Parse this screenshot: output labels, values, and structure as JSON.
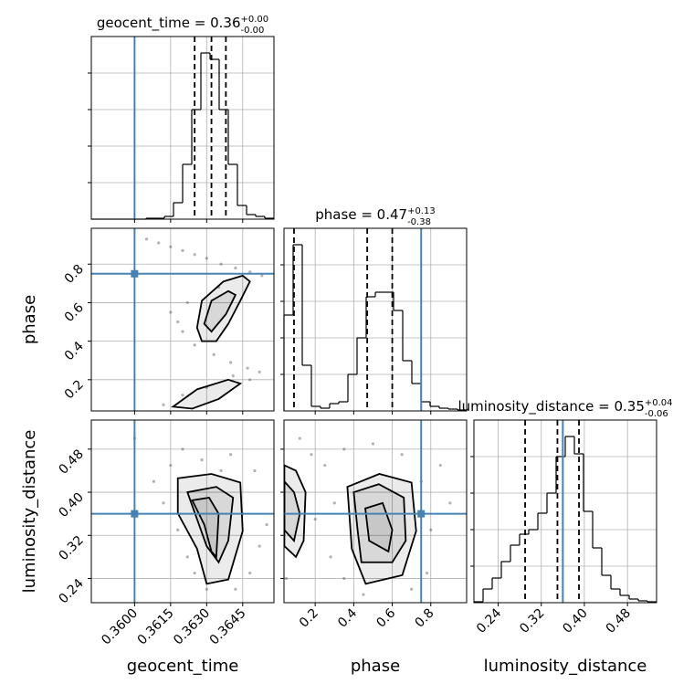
{
  "chart_data": {
    "type": "corner",
    "truth_color": "#4682b4",
    "line_color": "#000000",
    "point_color": "#555555",
    "grid": true,
    "parameters": [
      {
        "name": "geocent_time",
        "title": "geocent_time = 0.36",
        "title_upper": "+0.00",
        "title_lower": "-0.00",
        "lim": [
          0.3582,
          0.3658
        ],
        "ticks": [
          {
            "value": 0.36,
            "label": "0.3600"
          },
          {
            "value": 0.3615,
            "label": "0.3615"
          },
          {
            "value": 0.363,
            "label": "0.3630"
          },
          {
            "value": 0.3645,
            "label": "0.3645"
          }
        ],
        "truth": 0.36,
        "quantiles": [
          0.3625,
          0.3632,
          0.3638
        ],
        "bins": [
          0.3582,
          0.35858,
          0.35896,
          0.35934,
          0.35972,
          0.3601,
          0.36048,
          0.36086,
          0.36124,
          0.36162,
          0.362,
          0.36238,
          0.36276,
          0.36314,
          0.36352,
          0.3639,
          0.36428,
          0.36466,
          0.36504,
          0.36542,
          0.3658
        ],
        "counts": [
          0,
          0,
          0,
          0,
          0,
          0,
          1,
          1,
          3,
          18,
          60,
          120,
          182,
          175,
          120,
          60,
          15,
          5,
          3,
          1
        ],
        "hist_ylim": [
          0,
          200
        ],
        "hist_yticks": [
          40,
          80,
          120,
          160
        ]
      },
      {
        "name": "phase",
        "title": "phase = 0.47",
        "title_upper": "+0.13",
        "title_lower": "-0.38",
        "lim": [
          0.038,
          0.986
        ],
        "ticks": [
          0.2,
          0.4,
          0.6,
          0.8
        ],
        "truth": 0.75,
        "quantiles": [
          0.09,
          0.47,
          0.6
        ],
        "bins": [
          0.038,
          0.0854,
          0.1328,
          0.1802,
          0.2276,
          0.275,
          0.3224,
          0.3698,
          0.4172,
          0.4646,
          0.512,
          0.5594,
          0.6068,
          0.6542,
          0.7016,
          0.749,
          0.7964,
          0.8438,
          0.8912,
          0.9386,
          0.986
        ],
        "counts": [
          105,
          182,
          50,
          5,
          3,
          8,
          10,
          40,
          80,
          125,
          130,
          130,
          110,
          55,
          30,
          10,
          5,
          3,
          2,
          1
        ],
        "hist_ylim": [
          0,
          200
        ],
        "hist_yticks": [
          40,
          80,
          120,
          160
        ]
      },
      {
        "name": "luminosity_distance",
        "title": "luminosity_distance = 0.35",
        "title_upper": "+0.04",
        "title_lower": "-0.06",
        "lim": [
          0.195,
          0.534
        ],
        "ticks": [
          0.24,
          0.32,
          {
            "value": 0.4,
            "label": "0.40"
          },
          0.48
        ],
        "truth": 0.36,
        "quantiles": [
          0.29,
          0.35,
          0.39
        ],
        "bins": [
          0.195,
          0.21195,
          0.2289,
          0.24585,
          0.2628,
          0.27975,
          0.2967,
          0.31365,
          0.3306,
          0.34755,
          0.3645,
          0.38145,
          0.3984,
          0.41535,
          0.4323,
          0.44925,
          0.4662,
          0.48315,
          0.5001,
          0.51705,
          0.534
        ],
        "counts": [
          1,
          15,
          27,
          45,
          63,
          75,
          80,
          98,
          120,
          160,
          182,
          163,
          100,
          60,
          30,
          15,
          8,
          4,
          2,
          1
        ],
        "hist_ylim": [
          0,
          200
        ],
        "hist_yticks": [
          40,
          80,
          120,
          160
        ]
      }
    ],
    "pairs": [
      {
        "x_param": 0,
        "y_param": 1,
        "points": {
          "x": [
            0.3605,
            0.361,
            0.3615,
            0.362,
            0.3625,
            0.363,
            0.3636,
            0.3642,
            0.3648,
            0.3653,
            0.362,
            0.3625,
            0.3633,
            0.364,
            0.3647,
            0.3652,
            0.3615,
            0.3618,
            0.3622,
            0.3635,
            0.3612,
            0.362,
            0.363,
            0.3641,
            0.3648
          ],
          "y": [
            0.93,
            0.91,
            0.89,
            0.87,
            0.85,
            0.83,
            0.8,
            0.78,
            0.76,
            0.74,
            0.45,
            0.38,
            0.33,
            0.29,
            0.26,
            0.24,
            0.55,
            0.5,
            0.6,
            0.68,
            0.07,
            0.12,
            0.16,
            0.22,
            0.2
          ]
        },
        "contours": [
          {
            "x": [
              0.3626,
              0.3628,
              0.3637,
              0.3645,
              0.3648,
              0.3644,
              0.3639,
              0.3634,
              0.3628
            ],
            "y": [
              0.47,
              0.61,
              0.71,
              0.74,
              0.71,
              0.61,
              0.49,
              0.4,
              0.4
            ]
          },
          {
            "x": [
              0.3629,
              0.3632,
              0.3639,
              0.3642,
              0.3638,
              0.3632
            ],
            "y": [
              0.49,
              0.61,
              0.66,
              0.64,
              0.54,
              0.45
            ]
          },
          {
            "x": [
              0.3616,
              0.3626,
              0.3639,
              0.3644,
              0.3635,
              0.3624
            ],
            "y": [
              0.06,
              0.15,
              0.2,
              0.18,
              0.1,
              0.05
            ]
          }
        ]
      },
      {
        "x_param": 0,
        "y_param": 2,
        "points": {
          "x": [
            0.3615,
            0.362,
            0.3628,
            0.364,
            0.365,
            0.3612,
            0.3618,
            0.3622,
            0.3645,
            0.3652,
            0.3648,
            0.3642,
            0.363,
            0.3655,
            0.3608,
            0.36,
            0.3625,
            0.3636
          ],
          "y": [
            0.45,
            0.48,
            0.46,
            0.47,
            0.44,
            0.38,
            0.33,
            0.28,
            0.36,
            0.3,
            0.25,
            0.22,
            0.22,
            0.34,
            0.42,
            0.5,
            0.25,
            0.44
          ]
        },
        "contours": [
          {
            "x": [
              0.3618,
              0.3632,
              0.3644,
              0.3645,
              0.3639,
              0.363,
              0.3626,
              0.3618
            ],
            "y": [
              0.426,
              0.434,
              0.418,
              0.328,
              0.238,
              0.23,
              0.295,
              0.361
            ]
          },
          {
            "x": [
              0.3622,
              0.3634,
              0.3641,
              0.3639,
              0.3635,
              0.363,
              0.3626
            ],
            "y": [
              0.4,
              0.41,
              0.39,
              0.31,
              0.27,
              0.3,
              0.35
            ]
          },
          {
            "x": [
              0.3624,
              0.3631,
              0.3635,
              0.3634,
              0.3632,
              0.3629
            ],
            "y": [
              0.385,
              0.39,
              0.36,
              0.28,
              0.29,
              0.34
            ]
          }
        ]
      },
      {
        "x_param": 1,
        "y_param": 2,
        "points": {
          "x": [
            0.25,
            0.3,
            0.28,
            0.35,
            0.5,
            0.65,
            0.75,
            0.8,
            0.78,
            0.7,
            0.45,
            0.35,
            0.2,
            0.18,
            0.9,
            0.12,
            0.05,
            0.85
          ],
          "y": [
            0.45,
            0.38,
            0.28,
            0.48,
            0.49,
            0.47,
            0.42,
            0.33,
            0.25,
            0.22,
            0.21,
            0.24,
            0.35,
            0.47,
            0.38,
            0.5,
            0.24,
            0.45
          ]
        },
        "contours": [
          {
            "x": [
              0.04,
              0.1,
              0.15,
              0.14,
              0.1,
              0.04
            ],
            "y": [
              0.45,
              0.44,
              0.4,
              0.31,
              0.28,
              0.3
            ]
          },
          {
            "x": [
              0.04,
              0.09,
              0.12,
              0.09,
              0.04
            ],
            "y": [
              0.42,
              0.4,
              0.36,
              0.31,
              0.33
            ]
          },
          {
            "x": [
              0.367,
              0.533,
              0.7,
              0.724,
              0.652,
              0.462,
              0.39
            ],
            "y": [
              0.41,
              0.434,
              0.418,
              0.328,
              0.246,
              0.23,
              0.295
            ]
          },
          {
            "x": [
              0.4,
              0.53,
              0.66,
              0.67,
              0.6,
              0.44,
              0.42
            ],
            "y": [
              0.4,
              0.415,
              0.39,
              0.31,
              0.27,
              0.27,
              0.33
            ]
          },
          {
            "x": [
              0.46,
              0.55,
              0.6,
              0.58,
              0.48
            ],
            "y": [
              0.37,
              0.38,
              0.33,
              0.29,
              0.31
            ]
          }
        ]
      }
    ]
  }
}
